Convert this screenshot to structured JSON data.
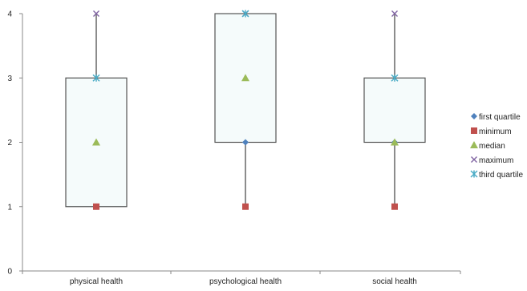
{
  "chart_data": {
    "type": "box",
    "title": "",
    "xlabel": "",
    "ylabel": "",
    "ylim": [
      0,
      4
    ],
    "yticks": [
      0,
      1,
      2,
      3,
      4
    ],
    "grid": false,
    "legend_position": "right",
    "categories": [
      "physical health",
      "psychological health",
      "social health"
    ],
    "series": [
      {
        "name": "first quartile",
        "marker": "diamond",
        "color": "#4f81bd",
        "values": [
          1,
          2,
          2
        ]
      },
      {
        "name": "minimum",
        "marker": "square",
        "color": "#c0504d",
        "values": [
          1,
          1,
          1
        ]
      },
      {
        "name": "median",
        "marker": "triangle",
        "color": "#9bbb59",
        "values": [
          2,
          3,
          2
        ]
      },
      {
        "name": "maximum",
        "marker": "x",
        "color": "#8064a2",
        "values": [
          4,
          4,
          4
        ]
      },
      {
        "name": "third quartile",
        "marker": "star",
        "color": "#4bacc6",
        "values": [
          3,
          4,
          3
        ]
      }
    ],
    "box_fill": "#f5fbfb",
    "box_stroke": "#555555"
  }
}
